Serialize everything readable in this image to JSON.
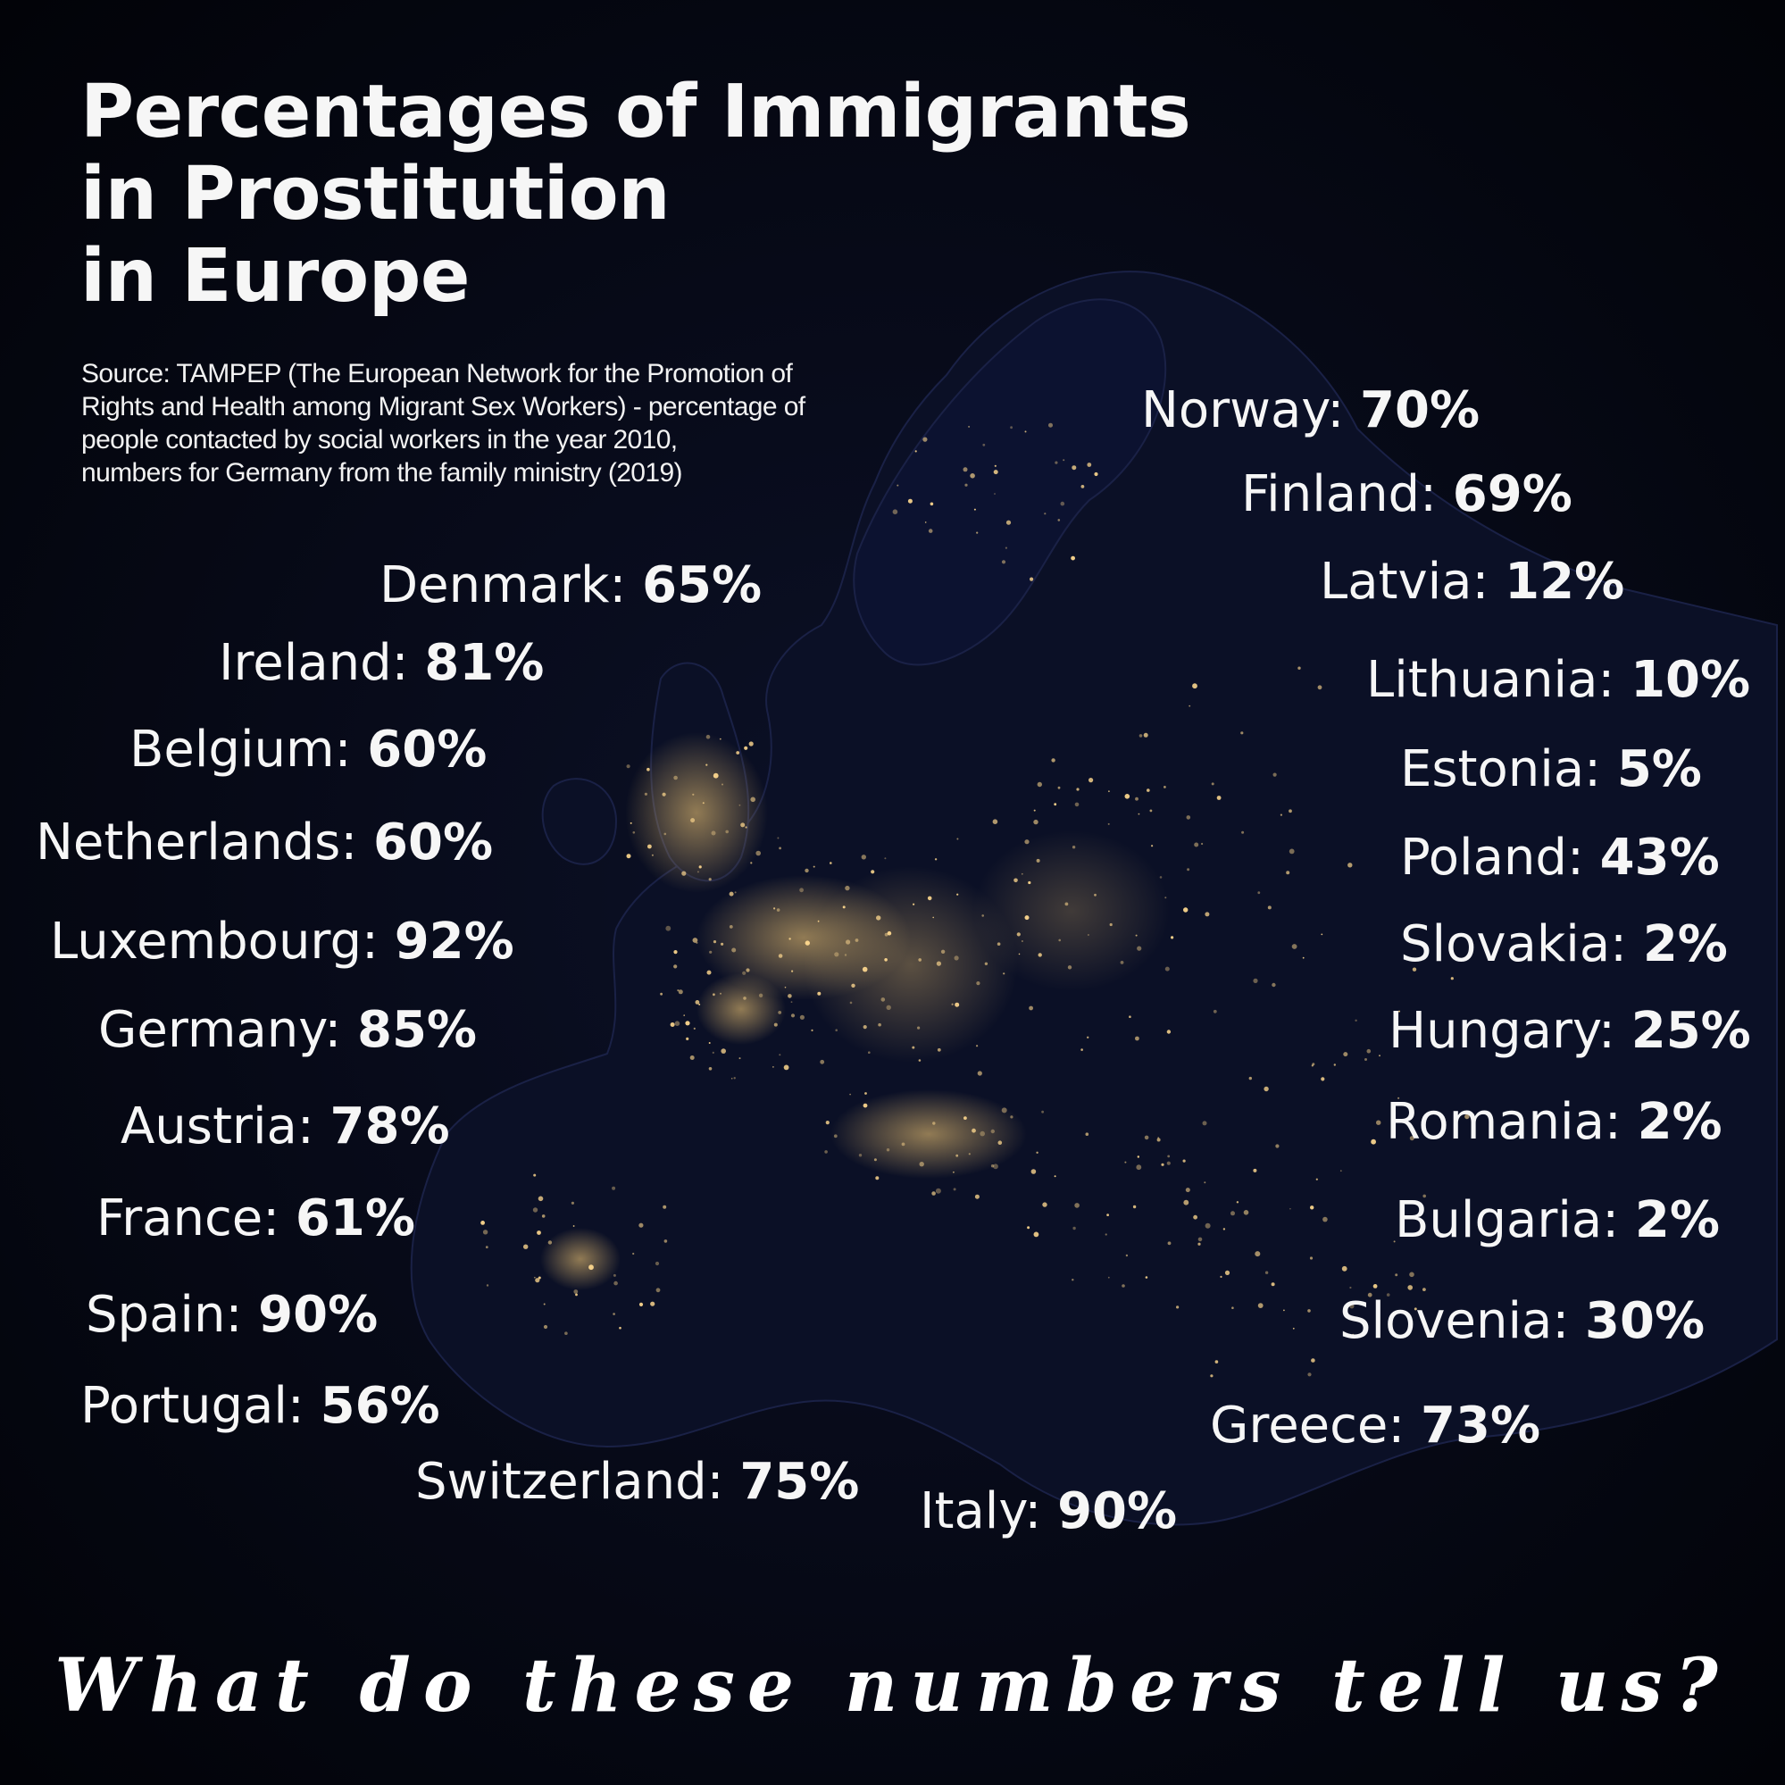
{
  "title_lines": [
    "Percentages of Immigrants",
    "in Prostitution",
    "in Europe"
  ],
  "source_lines": [
    "Source: TAMPEP (The European Network for the Promotion of",
    "Rights and Health among Migrant Sex Workers) - percentage of",
    "people contacted by social workers in the year 2010,",
    "numbers for Germany from the family ministry (2019)"
  ],
  "countries": [
    {
      "name": "Denmark:",
      "value": "65%"
    },
    {
      "name": "Ireland:",
      "value": "81%"
    },
    {
      "name": "Belgium:",
      "value": "60%"
    },
    {
      "name": "Netherlands:",
      "value": "60%"
    },
    {
      "name": "Luxembourg:",
      "value": "92%"
    },
    {
      "name": "Germany:",
      "value": "85%"
    },
    {
      "name": "Austria:",
      "value": "78%"
    },
    {
      "name": "France:",
      "value": "61%"
    },
    {
      "name": "Spain:",
      "value": "90%"
    },
    {
      "name": "Portugal:",
      "value": "56%"
    },
    {
      "name": "Switzerland:",
      "value": "75%"
    },
    {
      "name": "Italy:",
      "value": "90%"
    },
    {
      "name": "Norway:",
      "value": "70%"
    },
    {
      "name": "Finland:",
      "value": "69%"
    },
    {
      "name": "Latvia:",
      "value": "12%"
    },
    {
      "name": "Lithuania:",
      "value": "10%"
    },
    {
      "name": "Estonia:",
      "value": "5%"
    },
    {
      "name": "Poland:",
      "value": "43%"
    },
    {
      "name": "Slovakia:",
      "value": "2%"
    },
    {
      "name": "Hungary:",
      "value": "25%"
    },
    {
      "name": "Romania:",
      "value": "2%"
    },
    {
      "name": "Bulgaria:",
      "value": "2%"
    },
    {
      "name": "Slovenia:",
      "value": "30%"
    },
    {
      "name": "Greece:",
      "value": "73%"
    }
  ],
  "question": "What do these numbers tell us?",
  "colors": {
    "background": "#05060d",
    "land": "#0b0f24",
    "city_lights": "#ffd27a",
    "text": "#f6f6f6"
  }
}
